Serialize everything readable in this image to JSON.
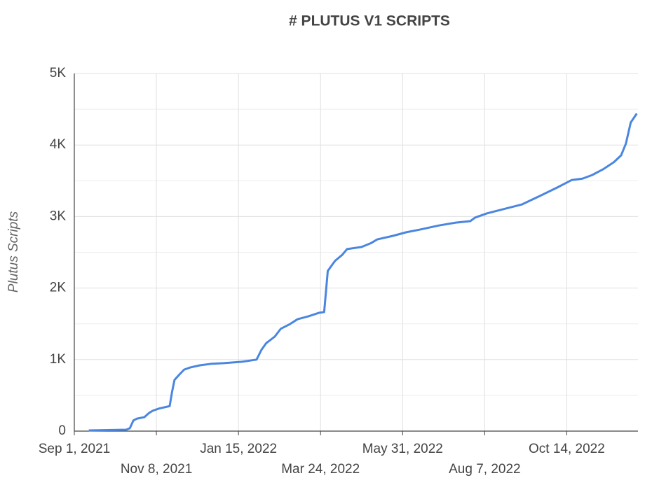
{
  "chart_data": {
    "type": "line",
    "title": "# PLUTUS V1 SCRIPTS",
    "y_label": "Plutus Scripts",
    "color": "#4a86e0",
    "grid": true,
    "x": [
      "2021-09-13",
      "2021-10-14",
      "2021-10-17",
      "2021-10-20",
      "2021-10-23",
      "2021-10-29",
      "2021-11-02",
      "2021-11-05",
      "2021-11-10",
      "2021-11-19",
      "2021-11-21",
      "2021-11-23",
      "2021-11-27",
      "2021-12-01",
      "2021-12-06",
      "2021-12-14",
      "2021-12-23",
      "2022-01-03",
      "2022-01-18",
      "2022-01-30",
      "2022-02-03",
      "2022-02-07",
      "2022-02-14",
      "2022-02-19",
      "2022-02-26",
      "2022-03-05",
      "2022-03-14",
      "2022-03-23",
      "2022-03-27",
      "2022-03-30",
      "2022-04-05",
      "2022-04-11",
      "2022-04-15",
      "2022-04-27",
      "2022-05-05",
      "2022-05-10",
      "2022-05-23",
      "2022-06-03",
      "2022-06-15",
      "2022-06-30",
      "2022-07-14",
      "2022-07-26",
      "2022-07-30",
      "2022-08-09",
      "2022-08-24",
      "2022-09-07",
      "2022-09-22",
      "2022-10-06",
      "2022-10-18",
      "2022-10-27",
      "2022-11-04",
      "2022-11-13",
      "2022-11-22",
      "2022-11-28",
      "2022-12-02",
      "2022-12-06",
      "2022-12-11"
    ],
    "values": [
      10,
      20,
      40,
      150,
      175,
      195,
      255,
      285,
      315,
      350,
      550,
      715,
      790,
      860,
      890,
      920,
      940,
      950,
      970,
      1000,
      1135,
      1230,
      1320,
      1430,
      1490,
      1565,
      1605,
      1655,
      1665,
      2240,
      2380,
      2465,
      2545,
      2575,
      2630,
      2680,
      2730,
      2780,
      2820,
      2875,
      2915,
      2935,
      2985,
      3045,
      3110,
      3170,
      3290,
      3405,
      3510,
      3530,
      3580,
      3660,
      3760,
      3855,
      4020,
      4315,
      4440
    ],
    "xlim": [
      "2021-09-01",
      "2022-12-12"
    ],
    "xticks": [
      {
        "value": "2021-09-01",
        "label": "Sep 1, 2021"
      },
      {
        "value": "2021-11-08",
        "label": "Nov 8, 2021"
      },
      {
        "value": "2022-01-15",
        "label": "Jan 15, 2022"
      },
      {
        "value": "2022-03-24",
        "label": "Mar 24, 2022"
      },
      {
        "value": "2022-05-31",
        "label": "May 31, 2022"
      },
      {
        "value": "2022-08-07",
        "label": "Aug 7, 2022"
      },
      {
        "value": "2022-10-14",
        "label": "Oct 14, 2022"
      }
    ],
    "ylim": [
      0,
      5000
    ],
    "yticks": [
      0,
      {
        "value": 1000,
        "label": "1K"
      },
      {
        "value": 2000,
        "label": "2K"
      },
      {
        "value": 3000,
        "label": "3K"
      },
      {
        "value": 4000,
        "label": "4K"
      },
      {
        "value": 5000,
        "label": "5K"
      }
    ],
    "minor_yticks": [
      500,
      1500,
      2500,
      3500,
      4500
    ]
  }
}
